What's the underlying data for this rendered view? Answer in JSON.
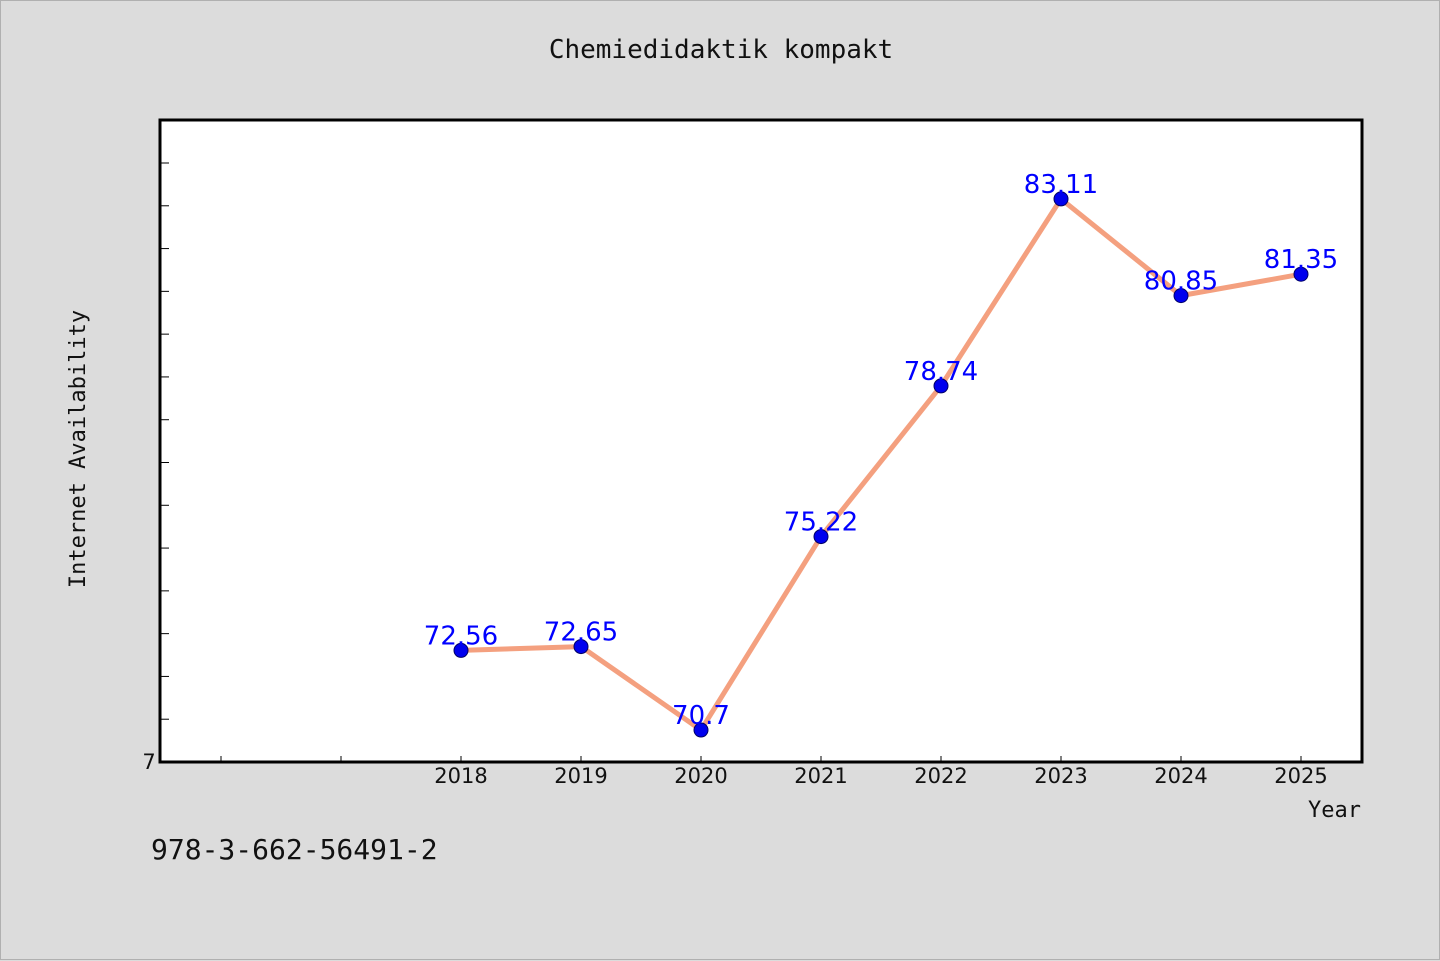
{
  "chart_data": {
    "type": "line",
    "title": "Chemiedidaktik kompakt",
    "xlabel": "Year",
    "ylabel": "Internet Availability",
    "categories": [
      "2018",
      "2019",
      "2020",
      "2021",
      "2022",
      "2023",
      "2024",
      "2025"
    ],
    "series": [
      {
        "values": [
          72.56,
          72.65,
          70.7,
          75.22,
          78.74,
          83.11,
          80.85,
          81.35
        ],
        "line_color": "#f4a07f",
        "marker_color": "#0000ee"
      }
    ],
    "data_labels": [
      "72.56",
      "72.65",
      "70.7",
      "75.22",
      "78.74",
      "83.11",
      "80.85",
      "81.35"
    ],
    "y_tick_label": "7",
    "ylim": [
      70,
      85
    ],
    "grid": false,
    "label_color": "#0000ff"
  },
  "footer": {
    "isbn": "978-3-662-56491-2"
  }
}
